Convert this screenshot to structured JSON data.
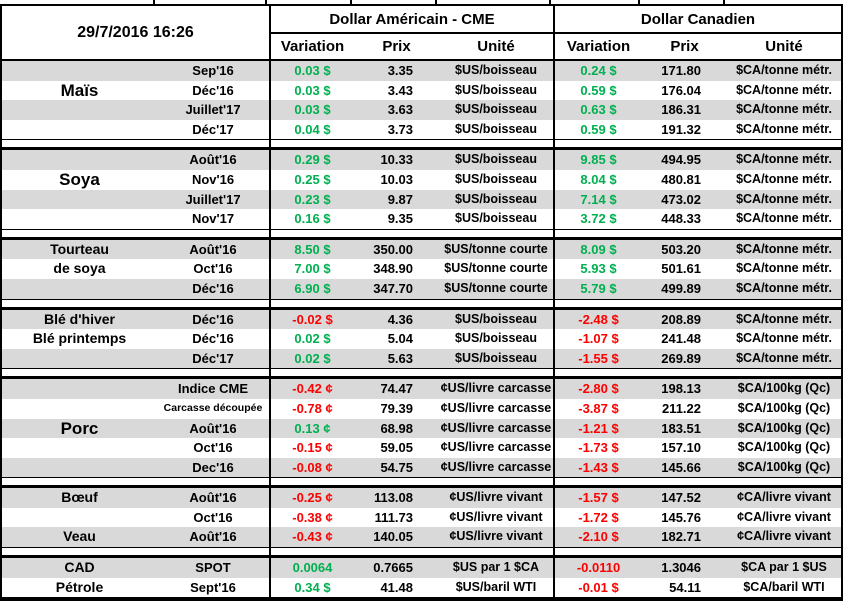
{
  "header": {
    "timestamp": "29/7/2016 16:26",
    "groups": [
      {
        "label": "Dollar Américain - CME"
      },
      {
        "label": "Dollar Canadien"
      }
    ],
    "subcols": {
      "variation": "Variation",
      "prix": "Prix",
      "unite": "Unité"
    }
  },
  "colors": {
    "positive": "#00B050",
    "negative": "#FF0000",
    "row_shade": "#D9D9D9",
    "border": "#000000"
  },
  "sections": [
    {
      "name": "Maïs",
      "label_style": "big",
      "rows": [
        {
          "label": "",
          "month": "Sep'16",
          "us_var": "0.03 $",
          "us_dir": "up",
          "us_prix": "3.35",
          "us_unit": "$US/boisseau",
          "ca_var": "0.24 $",
          "ca_dir": "up",
          "ca_prix": "171.80",
          "ca_unit": "$CA/tonne métr."
        },
        {
          "label": "Maïs",
          "month": "Déc'16",
          "us_var": "0.03 $",
          "us_dir": "up",
          "us_prix": "3.43",
          "us_unit": "$US/boisseau",
          "ca_var": "0.59 $",
          "ca_dir": "up",
          "ca_prix": "176.04",
          "ca_unit": "$CA/tonne métr."
        },
        {
          "label": "",
          "month": "Juillet'17",
          "us_var": "0.03 $",
          "us_dir": "up",
          "us_prix": "3.63",
          "us_unit": "$US/boisseau",
          "ca_var": "0.63 $",
          "ca_dir": "up",
          "ca_prix": "186.31",
          "ca_unit": "$CA/tonne métr."
        },
        {
          "label": "",
          "month": "Déc'17",
          "us_var": "0.04 $",
          "us_dir": "up",
          "us_prix": "3.73",
          "us_unit": "$US/boisseau",
          "ca_var": "0.59 $",
          "ca_dir": "up",
          "ca_prix": "191.32",
          "ca_unit": "$CA/tonne métr."
        }
      ]
    },
    {
      "name": "Soya",
      "label_style": "big",
      "rows": [
        {
          "label": "",
          "month": "Août'16",
          "us_var": "0.29 $",
          "us_dir": "up",
          "us_prix": "10.33",
          "us_unit": "$US/boisseau",
          "ca_var": "9.85 $",
          "ca_dir": "up",
          "ca_prix": "494.95",
          "ca_unit": "$CA/tonne métr."
        },
        {
          "label": "Soya",
          "month": "Nov'16",
          "us_var": "0.25 $",
          "us_dir": "up",
          "us_prix": "10.03",
          "us_unit": "$US/boisseau",
          "ca_var": "8.04 $",
          "ca_dir": "up",
          "ca_prix": "480.81",
          "ca_unit": "$CA/tonne métr."
        },
        {
          "label": "",
          "month": "Juillet'17",
          "us_var": "0.23 $",
          "us_dir": "up",
          "us_prix": "9.87",
          "us_unit": "$US/boisseau",
          "ca_var": "7.14 $",
          "ca_dir": "up",
          "ca_prix": "473.02",
          "ca_unit": "$CA/tonne métr."
        },
        {
          "label": "",
          "month": "Nov'17",
          "us_var": "0.16 $",
          "us_dir": "up",
          "us_prix": "9.35",
          "us_unit": "$US/boisseau",
          "ca_var": "3.72 $",
          "ca_dir": "up",
          "ca_prix": "448.33",
          "ca_unit": "$CA/tonne métr."
        }
      ]
    },
    {
      "name": "Tourteau de soya",
      "label_style": "normal",
      "rows": [
        {
          "label": "Tourteau",
          "month": "Août'16",
          "us_var": "8.50 $",
          "us_dir": "up",
          "us_prix": "350.00",
          "us_unit": "$US/tonne courte",
          "ca_var": "8.09 $",
          "ca_dir": "up",
          "ca_prix": "503.20",
          "ca_unit": "$CA/tonne métr."
        },
        {
          "label": "de soya",
          "month": "Oct'16",
          "us_var": "7.00 $",
          "us_dir": "up",
          "us_prix": "348.90",
          "us_unit": "$US/tonne courte",
          "ca_var": "5.93 $",
          "ca_dir": "up",
          "ca_prix": "501.61",
          "ca_unit": "$CA/tonne métr."
        },
        {
          "label": "",
          "month": "Déc'16",
          "us_var": "6.90 $",
          "us_dir": "up",
          "us_prix": "347.70",
          "us_unit": "$US/tonne courte",
          "ca_var": "5.79 $",
          "ca_dir": "up",
          "ca_prix": "499.89",
          "ca_unit": "$CA/tonne métr."
        }
      ]
    },
    {
      "name": "Blé",
      "label_style": "normal",
      "rows": [
        {
          "label": "Blé d'hiver",
          "month": "Déc'16",
          "us_var": "-0.02 $",
          "us_dir": "down",
          "us_prix": "4.36",
          "us_unit": "$US/boisseau",
          "ca_var": "-2.48 $",
          "ca_dir": "down",
          "ca_prix": "208.89",
          "ca_unit": "$CA/tonne métr."
        },
        {
          "label": "Blé printemps",
          "month": "Déc'16",
          "us_var": "0.02 $",
          "us_dir": "up",
          "us_prix": "5.04",
          "us_unit": "$US/boisseau",
          "ca_var": "-1.07 $",
          "ca_dir": "down",
          "ca_prix": "241.48",
          "ca_unit": "$CA/tonne métr."
        },
        {
          "label": "",
          "month": "Déc'17",
          "us_var": "0.02 $",
          "us_dir": "up",
          "us_prix": "5.63",
          "us_unit": "$US/boisseau",
          "ca_var": "-1.55 $",
          "ca_dir": "down",
          "ca_prix": "269.89",
          "ca_unit": "$CA/tonne métr."
        }
      ]
    },
    {
      "name": "Porc",
      "label_style": "big",
      "rows": [
        {
          "label": "",
          "month": "Indice CME",
          "us_var": "-0.42 ¢",
          "us_dir": "down",
          "us_prix": "74.47",
          "us_unit": "¢US/livre carcasse",
          "ca_var": "-2.80 $",
          "ca_dir": "down",
          "ca_prix": "198.13",
          "ca_unit": "$CA/100kg (Qc)"
        },
        {
          "label": "",
          "month": "Carcasse découpée",
          "us_var": "-0.78 ¢",
          "us_dir": "down",
          "us_prix": "79.39",
          "us_unit": "¢US/livre carcasse",
          "ca_var": "-3.87 $",
          "ca_dir": "down",
          "ca_prix": "211.22",
          "ca_unit": "$CA/100kg (Qc)"
        },
        {
          "label": "Porc",
          "month": "Août'16",
          "us_var": "0.13 ¢",
          "us_dir": "up",
          "us_prix": "68.98",
          "us_unit": "¢US/livre carcasse",
          "ca_var": "-1.21 $",
          "ca_dir": "down",
          "ca_prix": "183.51",
          "ca_unit": "$CA/100kg (Qc)"
        },
        {
          "label": "",
          "month": "Oct'16",
          "us_var": "-0.15 ¢",
          "us_dir": "down",
          "us_prix": "59.05",
          "us_unit": "¢US/livre carcasse",
          "ca_var": "-1.73 $",
          "ca_dir": "down",
          "ca_prix": "157.10",
          "ca_unit": "$CA/100kg (Qc)"
        },
        {
          "label": "",
          "month": "Dec'16",
          "us_var": "-0.08 ¢",
          "us_dir": "down",
          "us_prix": "54.75",
          "us_unit": "¢US/livre carcasse",
          "ca_var": "-1.43 $",
          "ca_dir": "down",
          "ca_prix": "145.66",
          "ca_unit": "$CA/100kg (Qc)"
        }
      ]
    },
    {
      "name": "Bœuf / Veau",
      "label_style": "normal",
      "rows": [
        {
          "label": "Bœuf",
          "month": "Août'16",
          "us_var": "-0.25 ¢",
          "us_dir": "down",
          "us_prix": "113.08",
          "us_unit": "¢US/livre vivant",
          "ca_var": "-1.57 $",
          "ca_dir": "down",
          "ca_prix": "147.52",
          "ca_unit": "¢CA/livre vivant"
        },
        {
          "label": "",
          "month": "Oct'16",
          "us_var": "-0.38 ¢",
          "us_dir": "down",
          "us_prix": "111.73",
          "us_unit": "¢US/livre vivant",
          "ca_var": "-1.72 $",
          "ca_dir": "down",
          "ca_prix": "145.76",
          "ca_unit": "¢CA/livre vivant"
        },
        {
          "label": "Veau",
          "month": "Août'16",
          "us_var": "-0.43 ¢",
          "us_dir": "down",
          "us_prix": "140.05",
          "us_unit": "¢US/livre vivant",
          "ca_var": "-2.10 $",
          "ca_dir": "down",
          "ca_prix": "182.71",
          "ca_unit": "¢CA/livre vivant"
        }
      ]
    },
    {
      "name": "CAD / Pétrole",
      "label_style": "normal",
      "rows": [
        {
          "label": "CAD",
          "month": "SPOT",
          "us_var": "0.0064",
          "us_dir": "up",
          "us_prix": "0.7665",
          "us_unit": "$US par 1 $CA",
          "ca_var": "-0.0110",
          "ca_dir": "down",
          "ca_prix": "1.3046",
          "ca_unit": "$CA par 1 $US"
        },
        {
          "label": "Pétrole",
          "month": "Sept'16",
          "us_var": "0.34 $",
          "us_dir": "up",
          "us_prix": "41.48",
          "us_unit": "$US/baril WTI",
          "ca_var": "-0.01 $",
          "ca_dir": "down",
          "ca_prix": "54.11",
          "ca_unit": "$CA/baril WTI"
        }
      ]
    }
  ]
}
